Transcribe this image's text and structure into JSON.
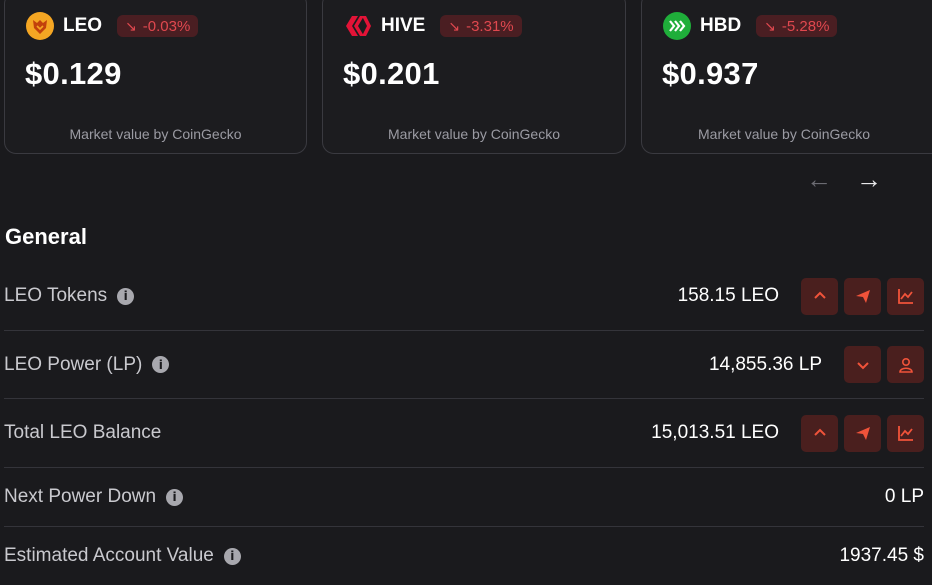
{
  "cards": [
    {
      "symbol": "LEO",
      "change": "-0.03%",
      "price": "$0.129",
      "source": "Market value by CoinGecko",
      "logo": "leo-lion-icon",
      "logo_color": "#f5a623"
    },
    {
      "symbol": "HIVE",
      "change": "-3.31%",
      "price": "$0.201",
      "source": "Market value by CoinGecko",
      "logo": "hive-icon",
      "logo_color": "#e31337"
    },
    {
      "symbol": "HBD",
      "change": "-5.28%",
      "price": "$0.937",
      "source": "Market value by CoinGecko",
      "logo": "hbd-icon",
      "logo_color": "#1fae3a"
    }
  ],
  "change_arrow": "↘",
  "nav": {
    "prev": "←",
    "next": "→"
  },
  "general": {
    "title": "General",
    "rows": [
      {
        "label": "LEO Tokens",
        "value": "158.15 LEO",
        "actions": [
          "chevron-up-icon",
          "send-icon",
          "chart-icon"
        ]
      },
      {
        "label": "LEO Power (LP)",
        "value": "14,855.36 LP",
        "actions": [
          "chevron-down-icon",
          "user-icon"
        ]
      },
      {
        "label": "Total LEO Balance",
        "value": "15,013.51 LEO",
        "actions": [
          "chevron-up-icon",
          "send-icon",
          "chart-icon"
        ]
      },
      {
        "label": "Next Power Down",
        "value": "0 LP",
        "actions": []
      },
      {
        "label": "Estimated Account Value",
        "value": "1937.45 $",
        "actions": []
      }
    ]
  },
  "info_glyph": "i",
  "colors": {
    "background": "#1a1a1d",
    "negative": "#e0484f",
    "negative_bg": "#4a1e22",
    "action_bg": "#4a1f1e",
    "action_icon": "#f0533a"
  }
}
